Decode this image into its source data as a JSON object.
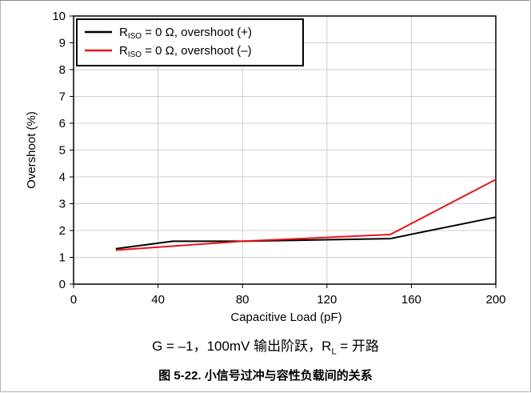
{
  "chart_data": {
    "type": "line",
    "xlabel": "Capacitive Load (pF)",
    "ylabel": "Overshoot (%)",
    "xlim": [
      0,
      200
    ],
    "ylim": [
      0,
      10
    ],
    "x_ticks": [
      "0",
      "40",
      "80",
      "120",
      "160",
      "200"
    ],
    "y_ticks": [
      "0",
      "1",
      "2",
      "3",
      "4",
      "5",
      "6",
      "7",
      "8",
      "9",
      "10"
    ],
    "grid": true,
    "legend_position": "top-left",
    "series": [
      {
        "name_main": "R",
        "name_sub": "ISO",
        "name_rest": " = 0 Ω, overshoot (+)",
        "color": "#000000",
        "x": [
          20,
          47,
          80,
          150,
          200
        ],
        "y": [
          1.32,
          1.6,
          1.6,
          1.7,
          2.5
        ]
      },
      {
        "name_main": "R",
        "name_sub": "ISO",
        "name_rest": " = 0 Ω, overshoot (–)",
        "color": "#e8141b",
        "x": [
          20,
          80,
          150,
          200
        ],
        "y": [
          1.27,
          1.6,
          1.85,
          3.9
        ]
      }
    ]
  },
  "subcaption": "G = –1，100mV 输出阶跃，R",
  "subcaption_sub": "L",
  "subcaption_rest": " = 开路",
  "figure_caption": "图 5-22. 小信号过冲与容性负载间的关系"
}
